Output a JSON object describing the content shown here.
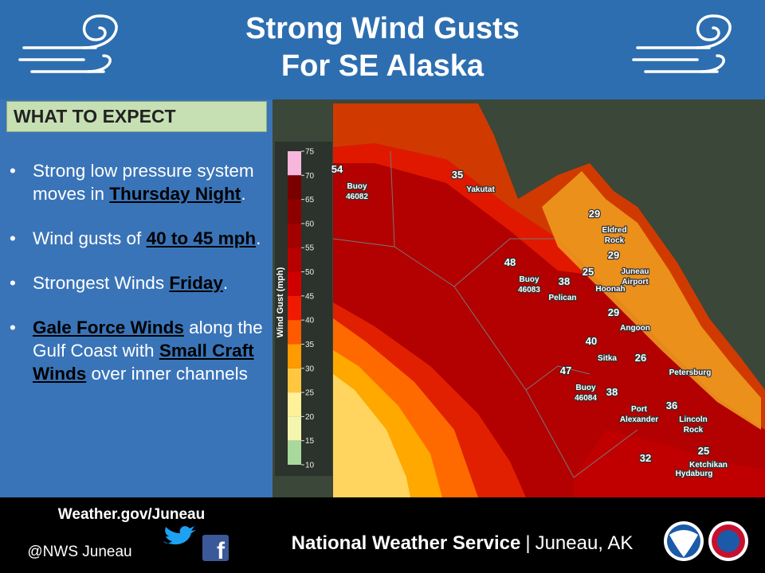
{
  "header": {
    "title_lines": [
      "Strong Wind Gusts",
      "For SE Alaska"
    ]
  },
  "panel": {
    "heading": "WHAT TO EXPECT",
    "bullets": [
      {
        "parts": [
          {
            "text": "Strong low pressure system moves in "
          },
          {
            "text": "Thursday Night",
            "emphasis": true
          },
          {
            "text": "."
          }
        ]
      },
      {
        "parts": [
          {
            "text": "Wind gusts of "
          },
          {
            "text": "40 to 45 mph",
            "emphasis": true
          },
          {
            "text": "."
          }
        ]
      },
      {
        "parts": [
          {
            "text": "Strongest Winds "
          },
          {
            "text": "Friday",
            "emphasis": true
          },
          {
            "text": "."
          }
        ]
      },
      {
        "parts": [
          {
            "text": "Gale Force Winds",
            "emphasis": true
          },
          {
            "text": " along the Gulf Coast with "
          },
          {
            "text": "Small Craft Winds",
            "emphasis": true
          },
          {
            "text": " over inner channels"
          }
        ]
      }
    ]
  },
  "legend": {
    "label": "Wind Gust (mph)",
    "ticks": [
      75,
      70,
      65,
      60,
      55,
      50,
      45,
      40,
      35,
      30,
      25,
      20,
      15,
      10
    ],
    "colors": [
      "#f7b6dc",
      "#7a0000",
      "#8e0000",
      "#a30000",
      "#b80000",
      "#d00000",
      "#f01a00",
      "#ff5a00",
      "#ff9a00",
      "#ffc640",
      "#fff09a",
      "#f4f6b0",
      "#a8d89c",
      "#3fb6c4"
    ]
  },
  "map": {
    "labels": [
      {
        "value": 54
      },
      {
        "lines": [
          "Buoy",
          "46082"
        ]
      },
      {
        "value": 35
      },
      {
        "lines": [
          "Yakutat"
        ]
      },
      {
        "value": 29
      },
      {
        "lines": [
          "Eldred",
          "Rock"
        ]
      },
      {
        "value": 29
      },
      {
        "lines": [
          "Juneau",
          "Airport"
        ]
      },
      {
        "value": 48
      },
      {
        "lines": [
          "Buoy",
          "46083"
        ]
      },
      {
        "value": 38
      },
      {
        "value": 25
      },
      {
        "lines": [
          "Hoonah"
        ]
      },
      {
        "lines": [
          "Pelican"
        ]
      },
      {
        "value": 29
      },
      {
        "lines": [
          "Angoon"
        ]
      },
      {
        "value": 40
      },
      {
        "lines": [
          "Sitka"
        ]
      },
      {
        "value": 26
      },
      {
        "lines": [
          "Petersburg"
        ]
      },
      {
        "value": 47
      },
      {
        "lines": [
          "Buoy",
          "46084"
        ]
      },
      {
        "value": 38
      },
      {
        "lines": [
          "Port",
          "Alexander"
        ]
      },
      {
        "value": 36
      },
      {
        "lines": [
          "Lincoln",
          "Rock"
        ]
      },
      {
        "value": 25
      },
      {
        "lines": [
          "Ketchikan"
        ]
      },
      {
        "value": 32
      },
      {
        "lines": [
          "Hydaburg"
        ]
      }
    ]
  },
  "footer": {
    "website": "Weather.gov/Juneau",
    "handle": "@NWS Juneau",
    "agency": "National Weather Service",
    "separator": "|",
    "office": "Juneau, AK"
  }
}
